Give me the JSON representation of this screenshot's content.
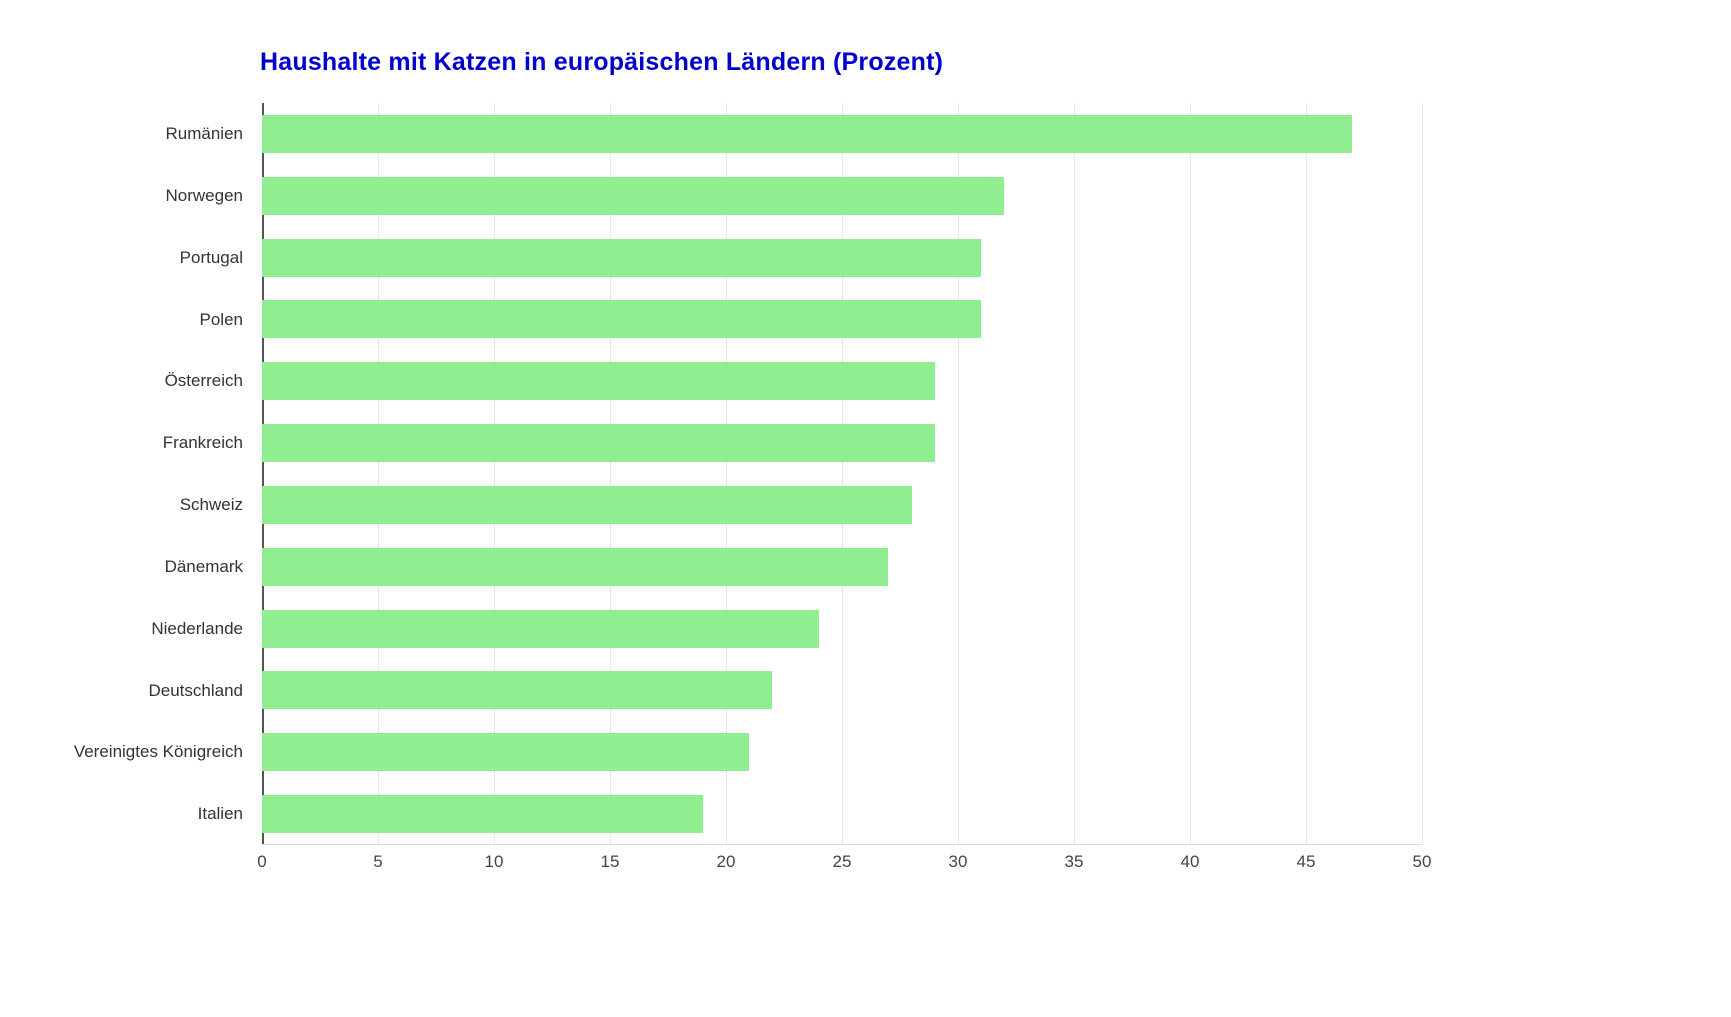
{
  "colors": {
    "bar": "#90EE90",
    "title": "#0000CD",
    "grid": "#e6e6e6",
    "zero_axis": "#555555",
    "label": "#333333",
    "tick_label": "#444444",
    "background": "#ffffff"
  },
  "chart_data": {
    "type": "bar",
    "orientation": "horizontal",
    "title": "Haushalte mit Katzen in europäischen Ländern (Prozent)",
    "categories": [
      "Rumänien",
      "Norwegen",
      "Portugal",
      "Polen",
      "Österreich",
      "Frankreich",
      "Schweiz",
      "Dänemark",
      "Niederlande",
      "Deutschland",
      "Vereinigtes Königreich",
      "Italien"
    ],
    "values": [
      47,
      32,
      31,
      31,
      29,
      29,
      28,
      27,
      24,
      22,
      21,
      19
    ],
    "xlabel": "",
    "ylabel": "",
    "xlim": [
      0,
      50
    ],
    "xticks": [
      0,
      5,
      10,
      15,
      20,
      25,
      30,
      35,
      40,
      45,
      50
    ],
    "grid": true,
    "legend": false
  }
}
